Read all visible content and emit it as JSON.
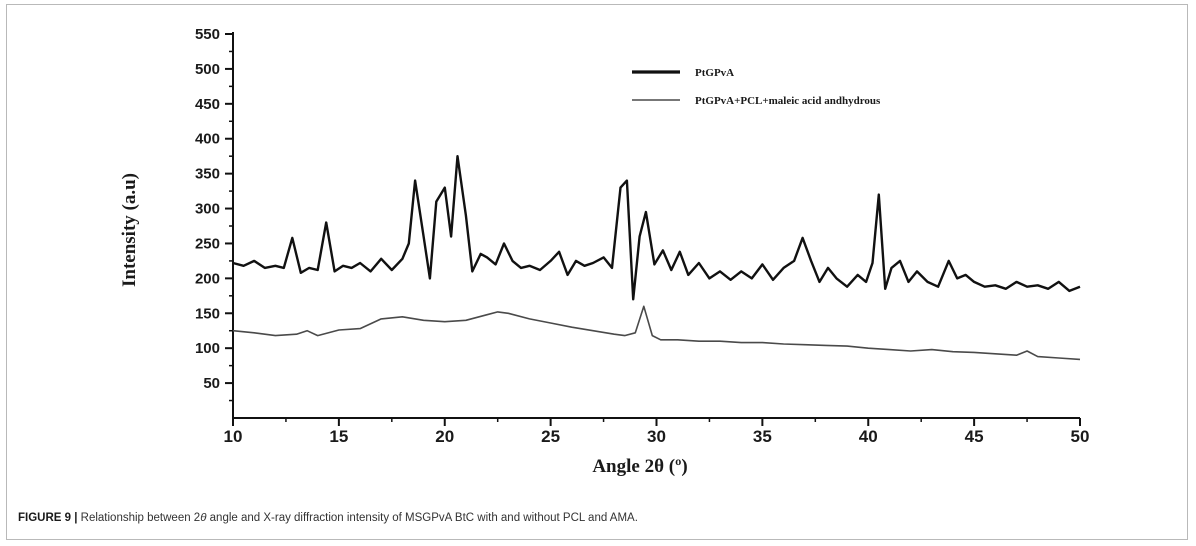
{
  "figure": {
    "label": "FIGURE 9 |",
    "caption_pre": " Relationship between 2",
    "caption_theta": "θ",
    "caption_post": " angle and X-ray diffraction intensity of MSGPvA BtC with and without PCL and AMA."
  },
  "chart_data": {
    "type": "line",
    "title": "",
    "xlabel": "Angle 2θ (º)",
    "ylabel": "Intensity (a.u)",
    "xlim": [
      10,
      50
    ],
    "ylim": [
      0,
      550
    ],
    "xticks": [
      10,
      15,
      20,
      25,
      30,
      35,
      40,
      45,
      50
    ],
    "yticks": [
      50,
      100,
      150,
      200,
      250,
      300,
      350,
      400,
      450,
      500,
      550
    ],
    "grid": false,
    "legend_position": "top-center",
    "series": [
      {
        "name": "PtGPvA",
        "color": "#111111",
        "x": [
          10.0,
          10.5,
          11.0,
          11.5,
          12.0,
          12.4,
          12.8,
          13.2,
          13.6,
          14.0,
          14.4,
          14.8,
          15.2,
          15.6,
          16.0,
          16.5,
          17.0,
          17.5,
          18.0,
          18.3,
          18.6,
          19.0,
          19.3,
          19.6,
          20.0,
          20.3,
          20.6,
          21.0,
          21.3,
          21.7,
          22.0,
          22.4,
          22.8,
          23.2,
          23.6,
          24.0,
          24.5,
          25.0,
          25.4,
          25.8,
          26.2,
          26.6,
          27.0,
          27.5,
          27.9,
          28.3,
          28.6,
          28.9,
          29.2,
          29.5,
          29.9,
          30.3,
          30.7,
          31.1,
          31.5,
          32.0,
          32.5,
          33.0,
          33.5,
          34.0,
          34.5,
          35.0,
          35.5,
          36.0,
          36.5,
          36.9,
          37.3,
          37.7,
          38.1,
          38.5,
          39.0,
          39.5,
          39.9,
          40.2,
          40.5,
          40.8,
          41.1,
          41.5,
          41.9,
          42.3,
          42.8,
          43.3,
          43.8,
          44.2,
          44.6,
          45.0,
          45.5,
          46.0,
          46.5,
          47.0,
          47.5,
          48.0,
          48.5,
          49.0,
          49.5,
          50.0
        ],
        "y": [
          222,
          218,
          225,
          215,
          218,
          215,
          258,
          208,
          215,
          212,
          280,
          210,
          218,
          215,
          222,
          210,
          228,
          212,
          228,
          250,
          340,
          260,
          200,
          310,
          330,
          260,
          375,
          290,
          210,
          235,
          230,
          220,
          250,
          225,
          215,
          218,
          212,
          225,
          238,
          205,
          225,
          218,
          222,
          230,
          215,
          330,
          340,
          170,
          260,
          295,
          220,
          240,
          212,
          238,
          205,
          222,
          200,
          210,
          198,
          210,
          200,
          220,
          198,
          215,
          225,
          258,
          225,
          195,
          215,
          200,
          188,
          205,
          195,
          222,
          320,
          185,
          215,
          225,
          195,
          210,
          195,
          188,
          225,
          200,
          205,
          195,
          188,
          190,
          185,
          195,
          188,
          190,
          185,
          195,
          182,
          188
        ]
      },
      {
        "name": "PtGPvA+PCL+maleic acid andhydrous",
        "color": "#4a4a4a",
        "x": [
          10.0,
          11.0,
          12.0,
          13.0,
          13.5,
          14.0,
          15.0,
          16.0,
          17.0,
          18.0,
          19.0,
          20.0,
          21.0,
          22.0,
          22.5,
          23.0,
          24.0,
          25.0,
          26.0,
          27.0,
          28.0,
          28.5,
          29.0,
          29.4,
          29.8,
          30.2,
          31.0,
          32.0,
          33.0,
          34.0,
          35.0,
          36.0,
          37.0,
          38.0,
          39.0,
          40.0,
          41.0,
          42.0,
          43.0,
          44.0,
          45.0,
          46.0,
          47.0,
          47.5,
          48.0,
          49.0,
          50.0
        ],
        "y": [
          125,
          122,
          118,
          120,
          125,
          118,
          126,
          128,
          142,
          145,
          140,
          138,
          140,
          148,
          152,
          150,
          142,
          136,
          130,
          125,
          120,
          118,
          122,
          160,
          118,
          112,
          112,
          110,
          110,
          108,
          108,
          106,
          105,
          104,
          103,
          100,
          98,
          96,
          98,
          95,
          94,
          92,
          90,
          96,
          88,
          86,
          84
        ]
      }
    ]
  }
}
